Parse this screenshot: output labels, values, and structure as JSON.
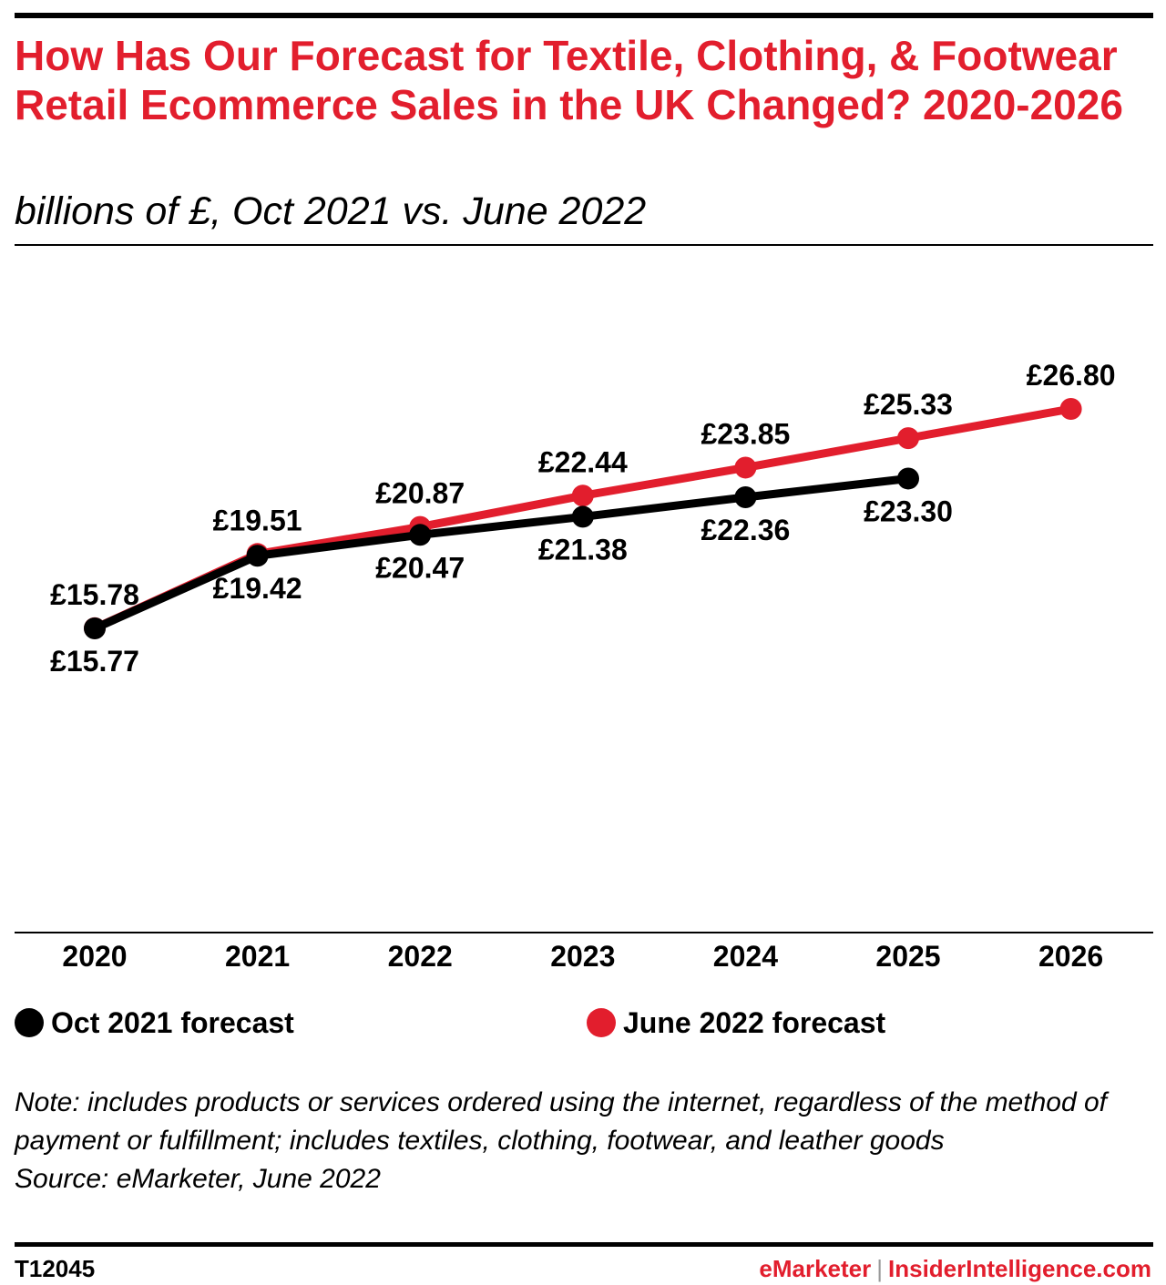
{
  "title": "How Has Our Forecast for Textile, Clothing, & Footwear Retail Ecommerce Sales in the UK Changed? 2020-2026",
  "subtitle": "billions of £, Oct 2021 vs. June 2022",
  "note": "Note: includes products or services ordered using the internet, regardless of the method of payment or fulfillment; includes textiles, clothing, footwear, and leather goods",
  "source": "Source: eMarketer, June 2022",
  "footer": {
    "chart_id": "T12045",
    "brand_emarketer": "eMarketer",
    "brand_separator": "|",
    "brand_ii": "InsiderIntelligence.com"
  },
  "colors": {
    "accent_red": "#e21e2d",
    "series_black": "#000000"
  },
  "chart_data": {
    "type": "line",
    "categories": [
      "2020",
      "2021",
      "2022",
      "2023",
      "2024",
      "2025",
      "2026"
    ],
    "series": [
      {
        "name": "Oct 2021 forecast",
        "color": "#000000",
        "values": [
          15.77,
          19.42,
          20.47,
          21.38,
          22.36,
          23.3,
          null
        ],
        "labels": [
          "£15.77",
          "£19.42",
          "£20.47",
          "£21.38",
          "£22.36",
          "£23.30",
          null
        ]
      },
      {
        "name": "June 2022 forecast",
        "color": "#e21e2d",
        "values": [
          15.78,
          19.51,
          20.87,
          22.44,
          23.85,
          25.33,
          26.8
        ],
        "labels": [
          "£15.78",
          "£19.51",
          "£20.87",
          "£22.44",
          "£23.85",
          "£25.33",
          "£26.80"
        ]
      }
    ],
    "ylim": [
      5,
      30
    ],
    "grid": false,
    "legend_position": "bottom"
  }
}
